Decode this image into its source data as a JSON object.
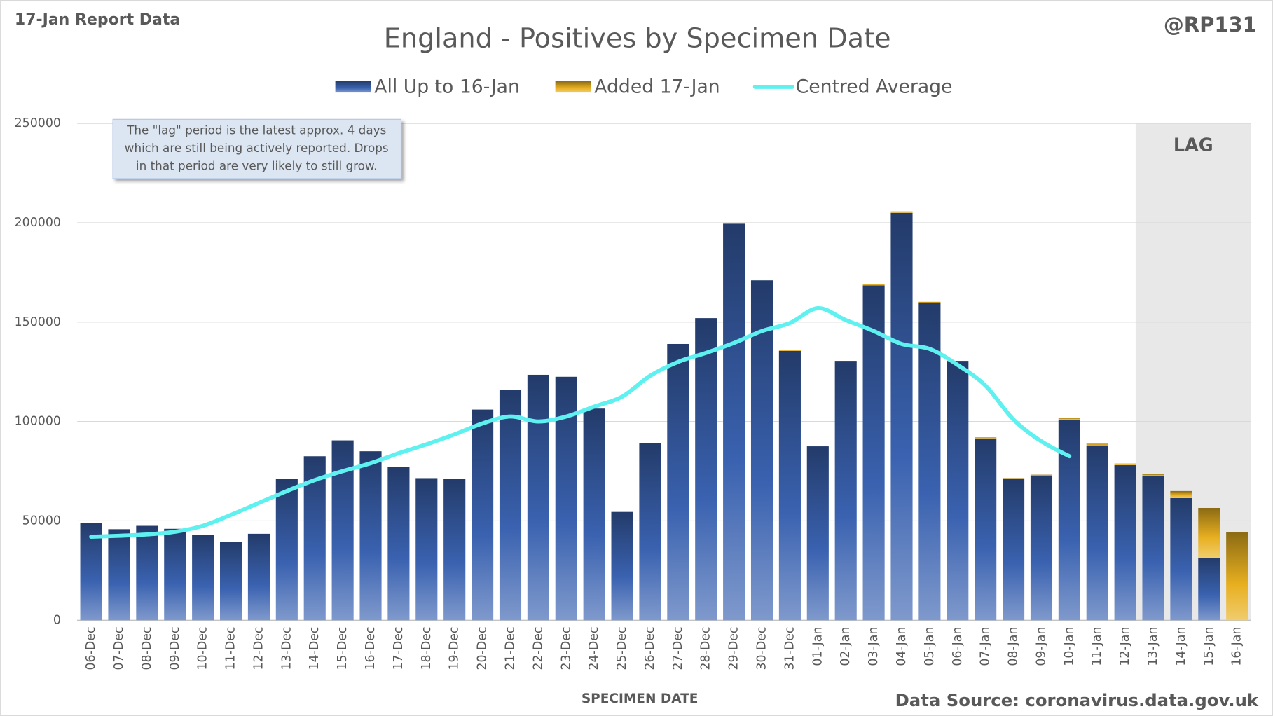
{
  "chart_data": {
    "type": "bar",
    "title": "England - Positives by Specimen Date",
    "report_label": "17-Jan Report Data",
    "author": "@RP131",
    "x_label": "SPECIMEN DATE",
    "source": "Data Source: coronavirus.data.gov.uk",
    "annotation_lines": [
      "The \"lag\" period is the latest approx. 4 days",
      "which are still being actively reported.  Drops",
      "in that period are very likely to still grow."
    ],
    "lag_label": "LAG",
    "lag_days": 4,
    "stacked": true,
    "grid": true,
    "categories": [
      "06-Dec",
      "07-Dec",
      "08-Dec",
      "09-Dec",
      "10-Dec",
      "11-Dec",
      "12-Dec",
      "13-Dec",
      "14-Dec",
      "15-Dec",
      "16-Dec",
      "17-Dec",
      "18-Dec",
      "19-Dec",
      "20-Dec",
      "21-Dec",
      "22-Dec",
      "23-Dec",
      "24-Dec",
      "25-Dec",
      "26-Dec",
      "27-Dec",
      "28-Dec",
      "29-Dec",
      "30-Dec",
      "31-Dec",
      "01-Jan",
      "02-Jan",
      "03-Jan",
      "04-Jan",
      "05-Jan",
      "06-Jan",
      "07-Jan",
      "08-Jan",
      "09-Jan",
      "10-Jan",
      "11-Jan",
      "12-Jan",
      "13-Jan",
      "14-Jan",
      "15-Jan",
      "16-Jan"
    ],
    "series": [
      {
        "name": "All Up to 16-Jan",
        "type": "bar",
        "color": "#3a62b0",
        "values": [
          49000,
          45800,
          47500,
          46000,
          43000,
          39500,
          43500,
          71000,
          82500,
          90500,
          85000,
          77000,
          71500,
          71000,
          106000,
          116000,
          123500,
          122500,
          106500,
          54500,
          89000,
          139000,
          152000,
          199500,
          171000,
          135500,
          87500,
          130500,
          168500,
          205000,
          159500,
          130500,
          91500,
          71000,
          72500,
          101000,
          88000,
          78000,
          72500,
          61500,
          31500,
          0
        ]
      },
      {
        "name": "Added 17-Jan",
        "type": "bar",
        "color": "#e8b020",
        "values": [
          0,
          0,
          0,
          0,
          0,
          0,
          0,
          0,
          0,
          0,
          0,
          0,
          0,
          0,
          0,
          0,
          0,
          0,
          0,
          0,
          0,
          0,
          0,
          500,
          0,
          500,
          0,
          0,
          700,
          700,
          700,
          0,
          500,
          500,
          700,
          700,
          800,
          800,
          1000,
          3500,
          25000,
          44500
        ]
      },
      {
        "name": "Centred Average",
        "type": "line",
        "color": "#5ff0f0",
        "values": [
          42000,
          42500,
          43200,
          44500,
          47500,
          53000,
          59000,
          65000,
          70500,
          75000,
          79000,
          84000,
          88500,
          93500,
          99000,
          102500,
          100000,
          102500,
          107500,
          112500,
          123000,
          130000,
          134500,
          139500,
          145500,
          149500,
          157000,
          151000,
          145500,
          139000,
          136500,
          128500,
          118000,
          101000,
          90000,
          82500,
          null,
          null,
          null,
          null,
          null,
          null
        ]
      }
    ],
    "ylim": [
      0,
      250000
    ],
    "yticks": [
      0,
      50000,
      100000,
      150000,
      200000,
      250000
    ]
  }
}
